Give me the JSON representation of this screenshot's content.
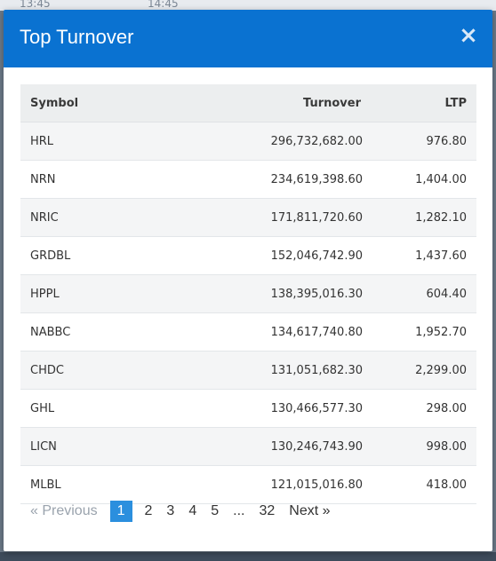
{
  "backdrop": {
    "times": [
      "13:45",
      "14:45"
    ]
  },
  "modal": {
    "title": "Top Turnover",
    "close_label": "×"
  },
  "table": {
    "columns": [
      "Symbol",
      "Turnover",
      "LTP"
    ],
    "rows": [
      {
        "symbol": "HRL",
        "turnover": "296,732,682.00",
        "ltp": "976.80"
      },
      {
        "symbol": "NRN",
        "turnover": "234,619,398.60",
        "ltp": "1,404.00"
      },
      {
        "symbol": "NRIC",
        "turnover": "171,811,720.60",
        "ltp": "1,282.10"
      },
      {
        "symbol": "GRDBL",
        "turnover": "152,046,742.90",
        "ltp": "1,437.60"
      },
      {
        "symbol": "HPPL",
        "turnover": "138,395,016.30",
        "ltp": "604.40"
      },
      {
        "symbol": "NABBC",
        "turnover": "134,617,740.80",
        "ltp": "1,952.70"
      },
      {
        "symbol": "CHDC",
        "turnover": "131,051,682.30",
        "ltp": "2,299.00"
      },
      {
        "symbol": "GHL",
        "turnover": "130,466,577.30",
        "ltp": "298.00"
      },
      {
        "symbol": "LICN",
        "turnover": "130,246,743.90",
        "ltp": "998.00"
      },
      {
        "symbol": "MLBL",
        "turnover": "121,015,016.80",
        "ltp": "418.00"
      }
    ]
  },
  "pagination": {
    "prev_label": "«  Previous",
    "pages": [
      "1",
      "2",
      "3",
      "4",
      "5"
    ],
    "ellipsis": "...",
    "last_page": "32",
    "next_label": "Next  »",
    "current_page": "1"
  },
  "colors": {
    "header_bg": "#0a72d1",
    "active_page_bg": "#2b8fde"
  }
}
